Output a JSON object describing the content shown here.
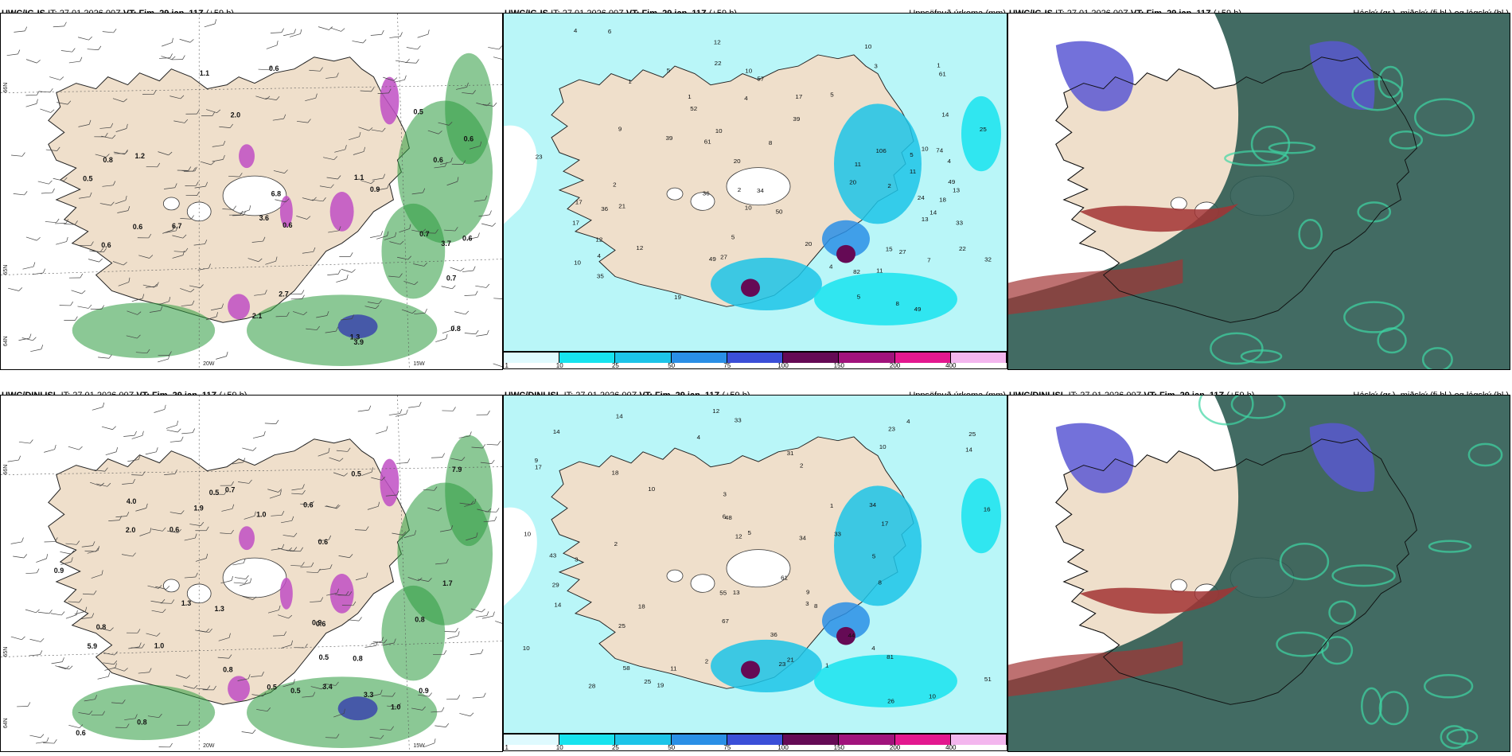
{
  "rows": [
    {
      "model": "UWC/IG-IS",
      "it_label": "IT:",
      "it_value": "27.01.2026 00Z",
      "vt_label": "VT:",
      "vt_value": "Fim. 29.jan. 11Z",
      "lead": "(+59 h)",
      "wind_values": [
        "0.7",
        "0.7",
        "0.5",
        "0.6",
        "2.0",
        "1.3",
        "0.6",
        "0.6",
        "0.6",
        "2.1",
        "0.6",
        "1.1",
        "0.9",
        "3.9",
        "2.7",
        "0.8",
        "0.6",
        "1.1",
        "0.8",
        "0.5",
        "3.6",
        "6.8",
        "3.7",
        "6.7",
        "1.2",
        "0.6"
      ],
      "precip_values": [
        "8",
        "4",
        "36",
        "20",
        "61",
        "7",
        "1",
        "2",
        "4",
        "10",
        "5",
        "2",
        "5",
        "10",
        "12",
        "11",
        "18",
        "8",
        "13",
        "19",
        "20",
        "21",
        "3",
        "50",
        "17",
        "34",
        "49",
        "61",
        "49",
        "52",
        "74",
        "39",
        "106",
        "27",
        "23",
        "13",
        "24",
        "12",
        "6",
        "10",
        "2",
        "1",
        "4",
        "4",
        "1",
        "5",
        "11",
        "33",
        "32",
        "36",
        "22",
        "27",
        "49",
        "82",
        "57",
        "35",
        "17",
        "10",
        "10",
        "14",
        "14",
        "17",
        "25",
        "9",
        "22",
        "12",
        "11",
        "20",
        "15",
        "10",
        "5",
        "4",
        "5",
        "39"
      ],
      "cloud_title": "Háský (gr.), miðský (fj.bl.) og lágský (bl.)"
    },
    {
      "model": "UWC/DINI ISL",
      "it_label": "IT:",
      "it_value": "27.01.2026 00Z",
      "vt_label": "VT:",
      "vt_value": "Fim. 29.jan. 11Z",
      "lead": "(+59 h)",
      "wind_values": [
        "0.8",
        "0.7",
        "0.8",
        "1.0",
        "0.6",
        "0.5",
        "0.8",
        "0.6",
        "0.9",
        "0.5",
        "1.9",
        "0.9",
        "0.8",
        "0.6",
        "1.0",
        "0.6",
        "1.0",
        "0.9",
        "3.4",
        "4.0",
        "3.3",
        "5.9",
        "0.8",
        "2.0",
        "1.3",
        "1.7",
        "0.6",
        "0.5",
        "7.9",
        "0.5",
        "1.3",
        "0.5"
      ],
      "precip_values": [
        "10",
        "33",
        "34",
        "25",
        "9",
        "10",
        "3",
        "2",
        "3",
        "4",
        "5",
        "8",
        "12",
        "17",
        "18",
        "25",
        "21",
        "43",
        "61",
        "67",
        "44",
        "81",
        "14",
        "48",
        "58",
        "12",
        "9",
        "14",
        "19",
        "23",
        "29",
        "26",
        "34",
        "28",
        "25",
        "14",
        "17",
        "14",
        "11",
        "10",
        "36",
        "33",
        "51",
        "16",
        "13",
        "18",
        "10",
        "10",
        "2",
        "2",
        "1",
        "4",
        "8",
        "5",
        "1",
        "4",
        "3",
        "6",
        "23",
        "31",
        "55"
      ],
      "cloud_title": "Háský (gr.), miðský (fj.bl.) og lágský (bl.)"
    }
  ],
  "precip_title": "Uppsöfnuð úrkoma (mm)",
  "legend": {
    "ticks": [
      "1",
      "10",
      "25",
      "50",
      "75",
      "100",
      "150",
      "200",
      "400"
    ],
    "colors": [
      "#dffafe",
      "#17e3ee",
      "#1cc4e8",
      "#2a8fe6",
      "#3b4fd8",
      "#650a55",
      "#a1137c",
      "#e3188f",
      "#f3b6ee"
    ]
  },
  "axes": {
    "lat_labels": [
      "66N",
      "65N",
      "64N"
    ],
    "lon_labels": [
      "20W",
      "15W"
    ]
  },
  "colors": {
    "land": "#efdfcb",
    "ocean_precip": "#b9f6f8",
    "wind_green": "#2c9a3e",
    "snow_magenta": "#c04fc4",
    "cloud_dark": "#2e5b52",
    "cloud_blue": "#5a58d4",
    "cloud_red": "#a23434"
  }
}
